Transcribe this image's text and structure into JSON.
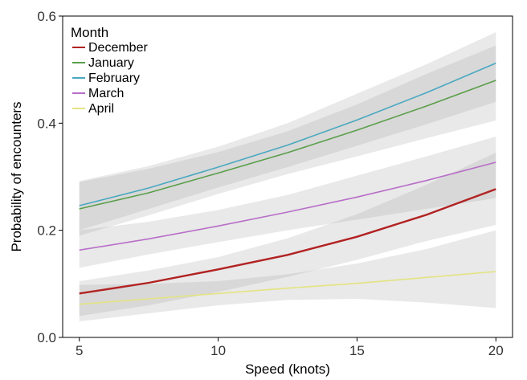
{
  "chart_data": {
    "type": "line",
    "title": "",
    "xlabel": "Speed (knots)",
    "ylabel": "Probability of encounters",
    "xlim": [
      4.4,
      20.6
    ],
    "ylim": [
      0,
      0.6
    ],
    "x_ticks": [
      5,
      10,
      15,
      20
    ],
    "x_tick_labels": [
      "5",
      "10",
      "15",
      "20"
    ],
    "y_ticks": [
      0,
      0.2,
      0.4,
      0.6
    ],
    "y_tick_labels": [
      "0.0",
      "0.2",
      "0.4",
      "0.6"
    ],
    "grid": false,
    "legend": {
      "title": "Month",
      "position": "top-left"
    },
    "series": [
      {
        "name": "December",
        "color": "#b22222",
        "x": [
          5,
          7.5,
          10,
          12.5,
          15,
          17.5,
          20
        ],
        "y": [
          0.082,
          0.102,
          0.127,
          0.154,
          0.188,
          0.229,
          0.277
        ],
        "ci_lower": [
          0.04,
          0.06,
          0.085,
          0.113,
          0.145,
          0.18,
          0.21
        ],
        "ci_upper": [
          0.105,
          0.125,
          0.15,
          0.185,
          0.23,
          0.285,
          0.345
        ]
      },
      {
        "name": "January",
        "color": "#5a9e4a",
        "x": [
          5,
          7.5,
          10,
          12.5,
          15,
          17.5,
          20
        ],
        "y": [
          0.24,
          0.27,
          0.307,
          0.345,
          0.387,
          0.432,
          0.48
        ],
        "ci_lower": [
          0.19,
          0.228,
          0.268,
          0.305,
          0.338,
          0.372,
          0.405
        ],
        "ci_upper": [
          0.29,
          0.315,
          0.346,
          0.385,
          0.435,
          0.492,
          0.545
        ]
      },
      {
        "name": "February",
        "color": "#4aa8c0",
        "x": [
          5,
          7.5,
          10,
          12.5,
          15,
          17.5,
          20
        ],
        "y": [
          0.246,
          0.279,
          0.318,
          0.359,
          0.406,
          0.457,
          0.512
        ],
        "ci_lower": [
          0.2,
          0.24,
          0.28,
          0.318,
          0.358,
          0.398,
          0.44
        ],
        "ci_upper": [
          0.292,
          0.32,
          0.356,
          0.4,
          0.455,
          0.51,
          0.57
        ]
      },
      {
        "name": "March",
        "color": "#b86ec8",
        "x": [
          5,
          7.5,
          10,
          12.5,
          15,
          17.5,
          20
        ],
        "y": [
          0.163,
          0.184,
          0.208,
          0.234,
          0.262,
          0.293,
          0.327
        ],
        "ci_lower": [
          0.13,
          0.155,
          0.178,
          0.2,
          0.22,
          0.24,
          0.26
        ],
        "ci_upper": [
          0.2,
          0.216,
          0.238,
          0.266,
          0.302,
          0.338,
          0.375
        ]
      },
      {
        "name": "April",
        "color": "#e3e382",
        "x": [
          5,
          7.5,
          10,
          12.5,
          15,
          17.5,
          20
        ],
        "y": [
          0.062,
          0.072,
          0.082,
          0.092,
          0.101,
          0.112,
          0.123
        ],
        "ci_lower": [
          0.03,
          0.045,
          0.06,
          0.07,
          0.072,
          0.065,
          0.055
        ],
        "ci_upper": [
          0.098,
          0.1,
          0.105,
          0.118,
          0.138,
          0.165,
          0.2
        ]
      }
    ]
  }
}
